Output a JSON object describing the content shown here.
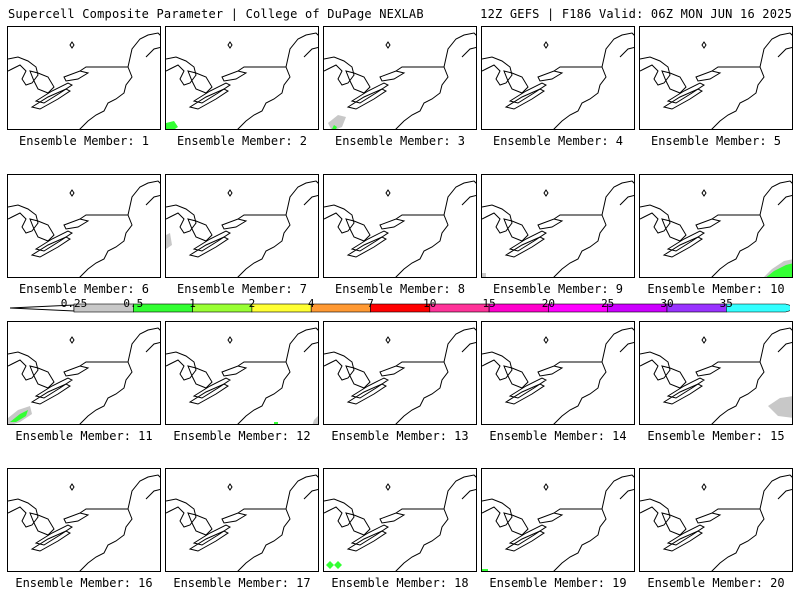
{
  "header": {
    "left": "Supercell Composite Parameter | College of DuPage NEXLAB",
    "right": "12Z GEFS | F186 Valid: 06Z MON JUN 16 2025"
  },
  "colorbar": {
    "ticks": [
      "0.25",
      "0.5",
      "1",
      "2",
      "4",
      "7",
      "10",
      "15",
      "20",
      "25",
      "30",
      "35"
    ],
    "colors": [
      "#c8c8c8",
      "#33ff33",
      "#99ff33",
      "#ffff33",
      "#ff9933",
      "#ff0000",
      "#ff3399",
      "#ff00cc",
      "#ff00ff",
      "#cc00ff",
      "#9933ff",
      "#33ffff"
    ]
  },
  "members": [
    {
      "label": "Ensemble Member: 1"
    },
    {
      "label": "Ensemble Member: 2"
    },
    {
      "label": "Ensemble Member: 3"
    },
    {
      "label": "Ensemble Member: 4"
    },
    {
      "label": "Ensemble Member: 5"
    },
    {
      "label": "Ensemble Member: 6"
    },
    {
      "label": "Ensemble Member: 7"
    },
    {
      "label": "Ensemble Member: 8"
    },
    {
      "label": "Ensemble Member: 9"
    },
    {
      "label": "Ensemble Member: 10"
    },
    {
      "label": "Ensemble Member: 11"
    },
    {
      "label": "Ensemble Member: 12"
    },
    {
      "label": "Ensemble Member: 13"
    },
    {
      "label": "Ensemble Member: 14"
    },
    {
      "label": "Ensemble Member: 15"
    },
    {
      "label": "Ensemble Member: 16"
    },
    {
      "label": "Ensemble Member: 17"
    },
    {
      "label": "Ensemble Member: 18"
    },
    {
      "label": "Ensemble Member: 19"
    },
    {
      "label": "Ensemble Member: 20"
    }
  ]
}
